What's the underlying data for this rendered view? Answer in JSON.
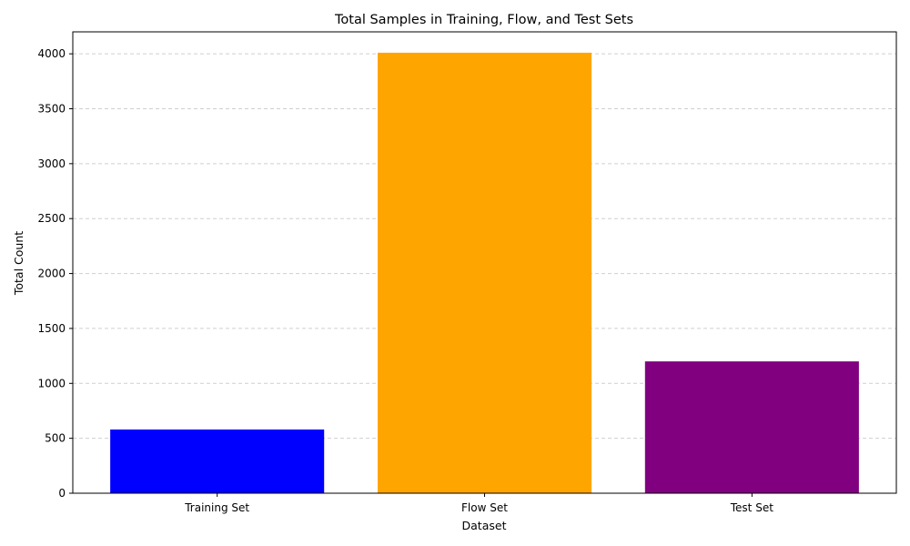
{
  "chart_data": {
    "type": "bar",
    "title": "Total Samples in Training, Flow, and Test Sets",
    "xlabel": "Dataset",
    "ylabel": "Total Count",
    "categories": [
      "Training Set",
      "Flow Set",
      "Test Set"
    ],
    "values": [
      580,
      4010,
      1200
    ],
    "colors": [
      "#0000ff",
      "#ffa500",
      "#800080"
    ],
    "ylim": [
      0,
      4200
    ],
    "yticks": [
      0,
      500,
      1000,
      1500,
      2000,
      2500,
      3000,
      3500,
      4000
    ],
    "grid": "y-dashed",
    "legend": "none"
  }
}
